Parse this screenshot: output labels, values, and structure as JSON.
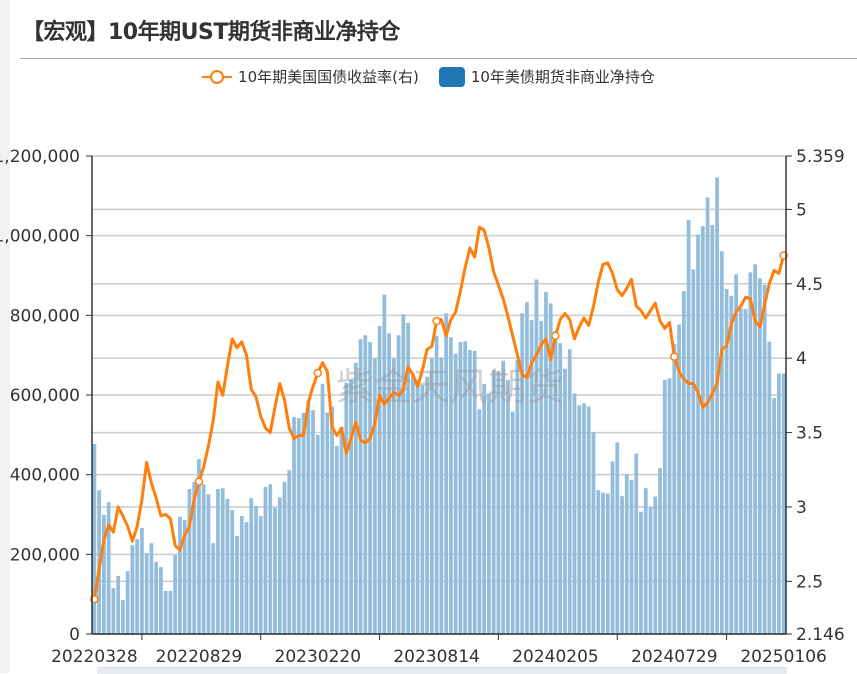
{
  "title": "【宏观】10年期UST期货非商业净持仓",
  "watermark": "紫金天风期货",
  "colors": {
    "bar": "#93bddc",
    "legend_bar": "#1f77b4",
    "line": "#ff7f0e",
    "axis": "#333333",
    "grid": "#cccccc"
  },
  "chart_data": {
    "type": "bar+line",
    "legend": [
      {
        "name": "10年期美国国债收益率(右)",
        "type": "line",
        "color": "#ff7f0e"
      },
      {
        "name": "10年美债期货非商业净持仓",
        "type": "bar",
        "color": "#1f77b4"
      }
    ],
    "legend_placement": "top-center",
    "grid": true,
    "y_left": {
      "range": [
        0,
        1200000
      ],
      "ticks": [
        "0",
        "200,000",
        "400,000",
        "600,000",
        "800,000",
        "1,000,000",
        "1,200,000"
      ]
    },
    "y_right": {
      "range": [
        2.146,
        5.359
      ],
      "ticks": [
        "2.146",
        "2.5",
        "3",
        "3.5",
        "4",
        "4.5",
        "5",
        "5.359"
      ]
    },
    "x_tick_labels": [
      "20220328",
      "20220829",
      "20230220",
      "20230814",
      "20240205",
      "20240729",
      "20250106"
    ],
    "categories": [
      "20220328",
      "20220404",
      "20220411",
      "20220418",
      "20220425",
      "20220502",
      "20220509",
      "20220516",
      "20220523",
      "20220530",
      "20220606",
      "20220613",
      "20220620",
      "20220627",
      "20220704",
      "20220711",
      "20220718",
      "20220725",
      "20220801",
      "20220808",
      "20220815",
      "20220822",
      "20220829",
      "20220905",
      "20220912",
      "20220919",
      "20220926",
      "20221003",
      "20221010",
      "20221017",
      "20221024",
      "20221031",
      "20221107",
      "20221114",
      "20221121",
      "20221128",
      "20221205",
      "20221212",
      "20221219",
      "20221226",
      "20230102",
      "20230109",
      "20230116",
      "20230123",
      "20230130",
      "20230206",
      "20230213",
      "20230220",
      "20230227",
      "20230306",
      "20230313",
      "20230320",
      "20230327",
      "20230403",
      "20230410",
      "20230417",
      "20230424",
      "20230501",
      "20230508",
      "20230515",
      "20230522",
      "20230529",
      "20230605",
      "20230612",
      "20230619",
      "20230626",
      "20230703",
      "20230710",
      "20230717",
      "20230724",
      "20230731",
      "20230807",
      "20230814",
      "20230821",
      "20230828",
      "20230904",
      "20230911",
      "20230918",
      "20230925",
      "20231002",
      "20231009",
      "20231016",
      "20231023",
      "20231030",
      "20231106",
      "20231113",
      "20231120",
      "20231127",
      "20231204",
      "20231211",
      "20231218",
      "20231225",
      "20240101",
      "20240108",
      "20240115",
      "20240122",
      "20240129",
      "20240205",
      "20240212",
      "20240219",
      "20240226",
      "20240304",
      "20240311",
      "20240318",
      "20240325",
      "20240401",
      "20240408",
      "20240415",
      "20240422",
      "20240429",
      "20240506",
      "20240513",
      "20240520",
      "20240527",
      "20240603",
      "20240610",
      "20240617",
      "20240624",
      "20240701",
      "20240708",
      "20240715",
      "20240722",
      "20240729",
      "20240805",
      "20240812",
      "20240819",
      "20240826",
      "20240902",
      "20240909",
      "20240916",
      "20240923",
      "20240930",
      "20241007",
      "20241014",
      "20241021",
      "20241028",
      "20241104",
      "20241111",
      "20241118",
      "20241125",
      "20241202",
      "20241209",
      "20241216",
      "20241223",
      "20241230",
      "20250106"
    ],
    "series": [
      {
        "name": "10年美债期货非商业净持仓",
        "type": "bar",
        "axis": "left",
        "values": [
          477000,
          361000,
          299000,
          331000,
          115000,
          146000,
          85000,
          158000,
          223000,
          238000,
          266000,
          203000,
          228000,
          181000,
          168000,
          108000,
          108000,
          198000,
          294000,
          286000,
          364000,
          381000,
          439000,
          376000,
          351000,
          228000,
          364000,
          366000,
          339000,
          311000,
          246000,
          296000,
          281000,
          341000,
          321000,
          296000,
          369000,
          376000,
          317000,
          343000,
          382000,
          411000,
          545000,
          542000,
          555000,
          586000,
          562000,
          500000,
          628000,
          556000,
          571000,
          472000,
          520000,
          631000,
          639000,
          681000,
          740000,
          750000,
          733000,
          692000,
          773000,
          852000,
          755000,
          692000,
          750000,
          803000,
          781000,
          654000,
          638000,
          625000,
          646000,
          692000,
          748000,
          694000,
          805000,
          745000,
          704000,
          733000,
          735000,
          713000,
          711000,
          564000,
          628000,
          604000,
          663000,
          660000,
          686000,
          638000,
          558000,
          688000,
          805000,
          833000,
          788000,
          890000,
          786000,
          859000,
          830000,
          761000,
          730000,
          666000,
          715000,
          604000,
          574000,
          579000,
          571000,
          507000,
          361000,
          355000,
          353000,
          433000,
          481000,
          346000,
          401000,
          387000,
          453000,
          307000,
          366000,
          318000,
          345000,
          417000,
          638000,
          642000,
          728000,
          777000,
          861000,
          1039000,
          915000,
          1003000,
          1024000,
          1096000,
          1027000,
          1146000,
          961000,
          866000,
          849000,
          903000,
          817000,
          816000,
          908000,
          928000,
          893000,
          876000,
          734000,
          592000,
          654000,
          654000
        ]
      },
      {
        "name": "10年期美国国债收益率(右)",
        "type": "line",
        "axis": "right",
        "values": [
          2.38,
          2.58,
          2.78,
          2.88,
          2.83,
          3.0,
          2.94,
          2.87,
          2.77,
          2.87,
          3.05,
          3.3,
          3.16,
          3.06,
          2.94,
          2.95,
          2.92,
          2.74,
          2.71,
          2.81,
          2.87,
          3.05,
          3.17,
          3.27,
          3.41,
          3.58,
          3.84,
          3.75,
          3.95,
          4.13,
          4.07,
          4.11,
          4.02,
          3.79,
          3.74,
          3.61,
          3.53,
          3.5,
          3.67,
          3.83,
          3.72,
          3.53,
          3.46,
          3.48,
          3.48,
          3.7,
          3.81,
          3.9,
          3.97,
          3.91,
          3.54,
          3.48,
          3.53,
          3.36,
          3.46,
          3.57,
          3.45,
          3.43,
          3.46,
          3.56,
          3.75,
          3.69,
          3.73,
          3.77,
          3.75,
          3.79,
          3.94,
          3.89,
          3.81,
          3.92,
          4.06,
          4.08,
          4.25,
          4.26,
          4.15,
          4.26,
          4.31,
          4.45,
          4.61,
          4.74,
          4.68,
          4.88,
          4.86,
          4.74,
          4.58,
          4.49,
          4.4,
          4.28,
          4.15,
          4.02,
          3.89,
          3.87,
          3.97,
          4.02,
          4.09,
          4.13,
          3.99,
          4.15,
          4.26,
          4.3,
          4.26,
          4.13,
          4.21,
          4.27,
          4.22,
          4.35,
          4.51,
          4.63,
          4.64,
          4.57,
          4.46,
          4.42,
          4.47,
          4.53,
          4.35,
          4.32,
          4.27,
          4.32,
          4.37,
          4.25,
          4.2,
          4.24,
          4.01,
          3.91,
          3.86,
          3.83,
          3.83,
          3.77,
          3.67,
          3.7,
          3.76,
          3.83,
          4.06,
          4.08,
          4.23,
          4.31,
          4.35,
          4.41,
          4.4,
          4.25,
          4.21,
          4.36,
          4.5,
          4.59,
          4.57,
          4.69
        ]
      }
    ]
  }
}
